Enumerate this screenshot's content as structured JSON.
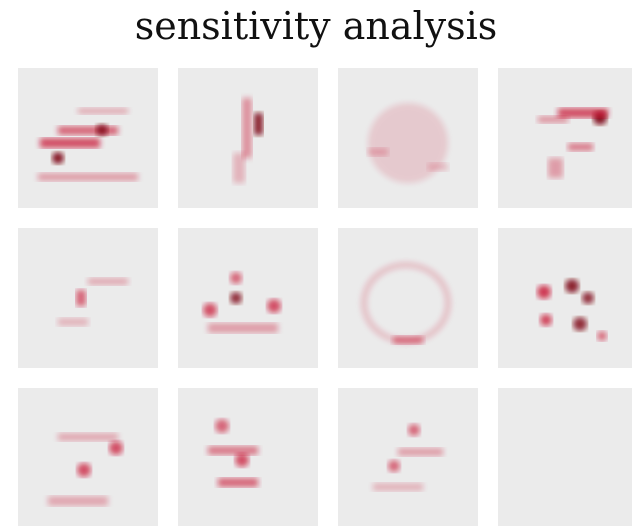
{
  "title": "sensitivity analysis"
}
